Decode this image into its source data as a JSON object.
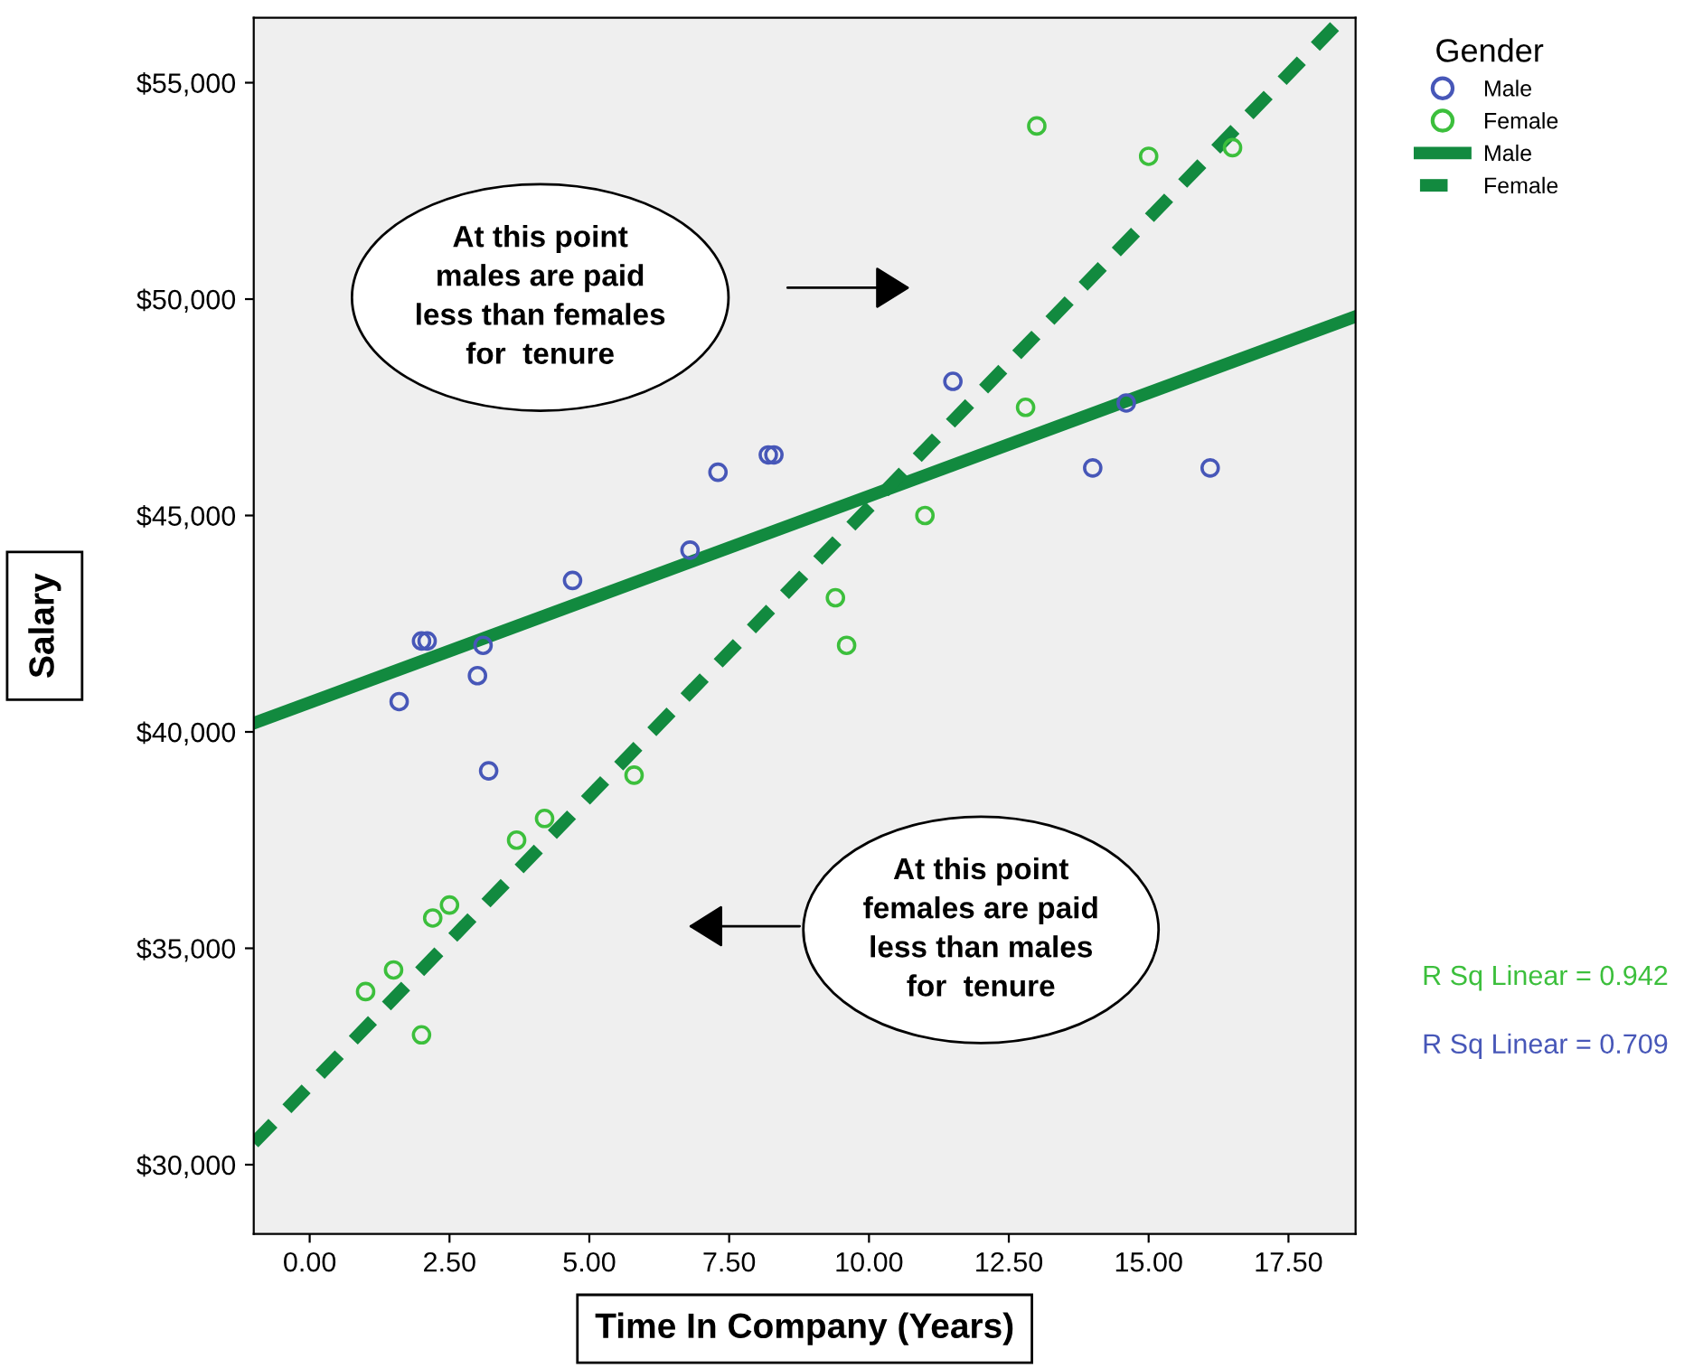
{
  "chart_data": {
    "type": "scatter",
    "xlabel": "Time In Company (Years)",
    "ylabel": "Salary",
    "legend_title": "Gender",
    "legend": "top right",
    "grid": false,
    "xlim": [
      -1,
      18.7
    ],
    "ylim": [
      28400,
      56500
    ],
    "xticks": [
      {
        "value": 0,
        "label": "0.00"
      },
      {
        "value": 2.5,
        "label": "2.50"
      },
      {
        "value": 5,
        "label": "5.00"
      },
      {
        "value": 7.5,
        "label": "7.50"
      },
      {
        "value": 10,
        "label": "10.00"
      },
      {
        "value": 12.5,
        "label": "12.50"
      },
      {
        "value": 15,
        "label": "15.00"
      },
      {
        "value": 17.5,
        "label": "17.50"
      }
    ],
    "yticks": [
      {
        "value": 30000,
        "label": "$30,000"
      },
      {
        "value": 35000,
        "label": "$35,000"
      },
      {
        "value": 40000,
        "label": "$40,000"
      },
      {
        "value": 45000,
        "label": "$45,000"
      },
      {
        "value": 50000,
        "label": "$50,000"
      },
      {
        "value": 55000,
        "label": "$55,000"
      }
    ],
    "series": [
      {
        "name": "Male",
        "marker": "circle",
        "color": "#4757b8",
        "x": [
          1.6,
          2.0,
          2.1,
          3.0,
          3.1,
          3.2,
          4.7,
          6.8,
          7.3,
          8.2,
          8.3,
          11.5,
          14.0,
          14.6,
          16.1
        ],
        "values": [
          40700,
          42100,
          42100,
          41300,
          42000,
          39100,
          43500,
          44200,
          46000,
          46400,
          46400,
          48100,
          46100,
          47600,
          46100
        ]
      },
      {
        "name": "Female",
        "marker": "circle",
        "color": "#3cbf3c",
        "x": [
          1.0,
          1.5,
          2.0,
          2.2,
          2.5,
          3.7,
          4.2,
          5.8,
          9.4,
          9.6,
          11.0,
          12.8,
          13.0,
          15.0,
          16.5
        ],
        "values": [
          34000,
          34500,
          33000,
          35700,
          36000,
          37500,
          38000,
          39000,
          43100,
          42000,
          45000,
          47500,
          54000,
          53300,
          53500
        ]
      },
      {
        "name": "Male",
        "type": "line",
        "line_style": "solid",
        "color": "#128a3f",
        "x": [
          -1,
          18.7
        ],
        "values": [
          40200,
          49600
        ]
      },
      {
        "name": "Female",
        "type": "line",
        "line_style": "dashed",
        "color": "#128a3f",
        "x": [
          -1,
          18.4
        ],
        "values": [
          30500,
          56400
        ]
      }
    ],
    "annotations": [
      "At this point\nmales are paid\nless than females\nfor  tenure",
      "At this point\nfemales are paid\nless than males\nfor  tenure",
      "R Sq Linear = 0.942",
      "R Sq Linear = 0.709"
    ]
  }
}
